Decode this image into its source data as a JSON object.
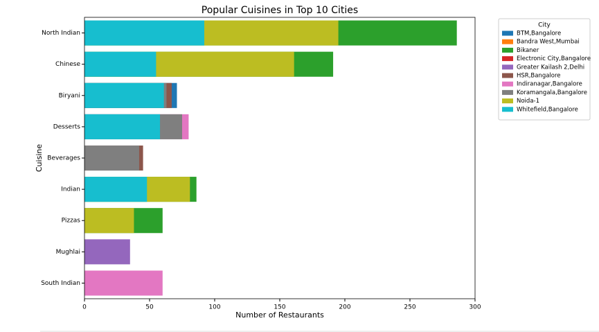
{
  "chart_data": {
    "type": "bar",
    "orientation": "horizontal",
    "overlap": true,
    "title": "Popular Cuisines in Top 10 Cities",
    "x_label": "Number of Restaurants",
    "y_label": "Cuisine",
    "legend_title": "City",
    "legend_position": "outside-upper-right",
    "categories": [
      "North Indian",
      "Chinese",
      "Biryani",
      "Desserts",
      "Beverages",
      "Indian",
      "Pizzas",
      "Mughlai",
      "South Indian"
    ],
    "xlim": [
      0,
      300
    ],
    "xticks": [
      0,
      50,
      100,
      150,
      200,
      250,
      300
    ],
    "series": [
      {
        "name": "BTM,Bangalore",
        "color": "#1f77b4",
        "values": [
          null,
          null,
          71,
          null,
          null,
          null,
          null,
          null,
          null
        ]
      },
      {
        "name": "Bandra West,Mumbai",
        "color": "#ff7f0e",
        "values": [
          null,
          null,
          null,
          null,
          null,
          null,
          null,
          null,
          null
        ]
      },
      {
        "name": "Bikaner",
        "color": "#2ca02c",
        "values": [
          286,
          191,
          null,
          null,
          null,
          86,
          60,
          null,
          null
        ]
      },
      {
        "name": "Electronic City,Bangalore",
        "color": "#d62728",
        "values": [
          null,
          null,
          null,
          null,
          null,
          null,
          null,
          null,
          null
        ]
      },
      {
        "name": "Greater Kailash 2,Delhi",
        "color": "#9467bd",
        "values": [
          null,
          null,
          null,
          null,
          null,
          null,
          null,
          35,
          null
        ]
      },
      {
        "name": "HSR,Bangalore",
        "color": "#8c564b",
        "values": [
          null,
          null,
          67,
          null,
          45,
          null,
          null,
          null,
          null
        ]
      },
      {
        "name": "Indiranagar,Bangalore",
        "color": "#e377c2",
        "values": [
          null,
          null,
          null,
          80,
          null,
          null,
          null,
          null,
          60
        ]
      },
      {
        "name": "Koramangala,Bangalore",
        "color": "#7f7f7f",
        "values": [
          null,
          null,
          63,
          75,
          42,
          null,
          null,
          null,
          null
        ]
      },
      {
        "name": "Noida-1",
        "color": "#bcbd22",
        "values": [
          195,
          161,
          null,
          null,
          null,
          81,
          38,
          null,
          null
        ]
      },
      {
        "name": "Whitefield,Bangalore",
        "color": "#17becf",
        "values": [
          92,
          55,
          61,
          58,
          null,
          48,
          null,
          null,
          null
        ]
      }
    ]
  }
}
